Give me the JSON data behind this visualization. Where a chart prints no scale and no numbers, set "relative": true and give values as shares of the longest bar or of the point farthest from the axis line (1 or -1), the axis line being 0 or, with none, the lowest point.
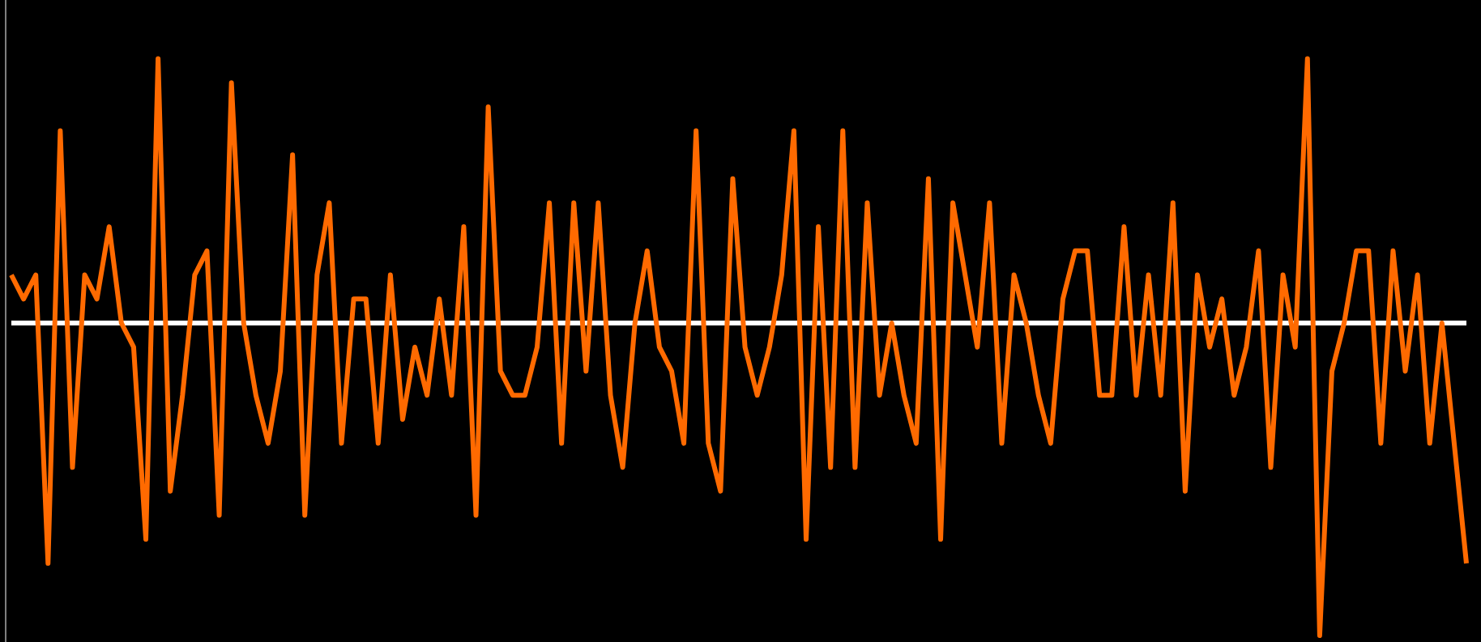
{
  "chart_data": {
    "type": "line",
    "relative": true,
    "categories": [
      null,
      null,
      null,
      null,
      null,
      null,
      null,
      null,
      null,
      null,
      null,
      null,
      null,
      null,
      null,
      null,
      null,
      null,
      null,
      null,
      null,
      null,
      null,
      null,
      null,
      null,
      null,
      null,
      null,
      null,
      null,
      null,
      null,
      null,
      null,
      null,
      null,
      null,
      null,
      null,
      null,
      null,
      null,
      null,
      null,
      null,
      null,
      null,
      null,
      null,
      null,
      null,
      null,
      null,
      null,
      null,
      null,
      null,
      null,
      null,
      null,
      null,
      null,
      null,
      null,
      null,
      null,
      null,
      null,
      null,
      null,
      null,
      null,
      null,
      null,
      null,
      null,
      null,
      null,
      null,
      null,
      null,
      null,
      null,
      null,
      null,
      null,
      null,
      null,
      null,
      null,
      null,
      null,
      null,
      null,
      null,
      null,
      null,
      null,
      null,
      null,
      null,
      null,
      null,
      null,
      null,
      null,
      null,
      null,
      null,
      null,
      null,
      null,
      null,
      null,
      null,
      null,
      null,
      null,
      null
    ],
    "series": [
      {
        "color": "#ff6a00",
        "values": [
          0.154,
          0.077,
          0.154,
          -0.769,
          0.615,
          -0.462,
          0.154,
          0.077,
          0.308,
          0,
          -0.077,
          -0.692,
          0.846,
          -0.538,
          -0.231,
          0.154,
          0.231,
          -0.615,
          0.769,
          0,
          -0.231,
          -0.385,
          -0.154,
          0.538,
          -0.615,
          0.154,
          0.385,
          -0.385,
          0.077,
          0.077,
          -0.385,
          0.154,
          -0.308,
          -0.077,
          -0.231,
          0.077,
          -0.231,
          0.308,
          -0.615,
          0.692,
          -0.154,
          -0.231,
          -0.231,
          -0.077,
          0.385,
          -0.385,
          0.385,
          -0.154,
          0.385,
          -0.231,
          -0.462,
          0,
          0.231,
          -0.077,
          -0.154,
          -0.385,
          0.615,
          -0.385,
          -0.538,
          0.462,
          -0.077,
          -0.231,
          -0.077,
          0.154,
          0.615,
          -0.692,
          0.308,
          -0.462,
          0.615,
          -0.462,
          0.385,
          -0.231,
          0,
          -0.231,
          -0.385,
          0.462,
          -0.692,
          0.385,
          0.154,
          -0.077,
          0.385,
          -0.385,
          0.154,
          0,
          -0.231,
          -0.385,
          0.077,
          0.231,
          0.231,
          -0.231,
          -0.231,
          0.308,
          -0.231,
          0.154,
          -0.231,
          0.385,
          -0.538,
          0.154,
          -0.077,
          0.077,
          -0.231,
          -0.077,
          0.231,
          -0.462,
          0.154,
          -0.077,
          0.846,
          -1,
          -0.154,
          0,
          0.231,
          0.231,
          -0.385,
          0.231,
          -0.154,
          0.154,
          -0.385,
          0,
          -0.385,
          -0.769
        ]
      }
    ]
  }
}
